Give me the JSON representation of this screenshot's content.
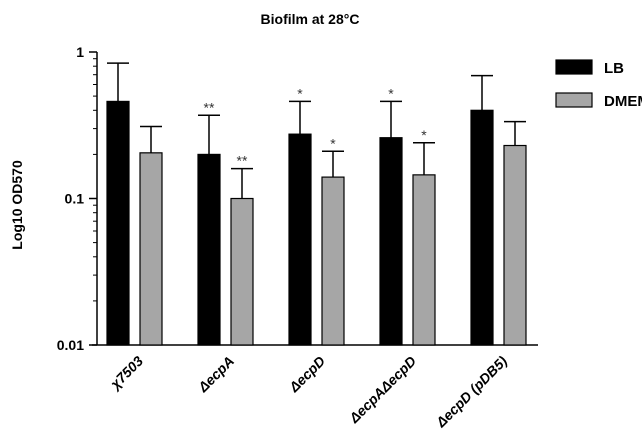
{
  "chart_data": {
    "type": "bar",
    "title": "Biofilm at 28°C",
    "ylabel": "Log10 OD570",
    "xlabel": "",
    "yscale": "log",
    "ylim": [
      0.01,
      1
    ],
    "yticks": [
      "1",
      "0.1",
      "0.01"
    ],
    "legend": "right",
    "categories": [
      "χ7503",
      "ΔecpA",
      "ΔecpD",
      "ΔecpAΔecpD",
      "ΔecpD (pDB5)"
    ],
    "series": [
      {
        "name": "LB",
        "color": "#000000",
        "values": [
          0.46,
          0.2,
          0.275,
          0.26,
          0.4
        ],
        "error_upper": [
          0.84,
          0.37,
          0.46,
          0.46,
          0.69
        ],
        "significance": [
          "",
          "**",
          "*",
          "*",
          ""
        ]
      },
      {
        "name": "DMEM",
        "color": "#a6a6a6",
        "values": [
          0.205,
          0.1,
          0.14,
          0.145,
          0.23
        ],
        "error_upper": [
          0.31,
          0.16,
          0.21,
          0.24,
          0.335
        ],
        "significance": [
          "",
          "**",
          "*",
          "*",
          ""
        ]
      }
    ]
  }
}
